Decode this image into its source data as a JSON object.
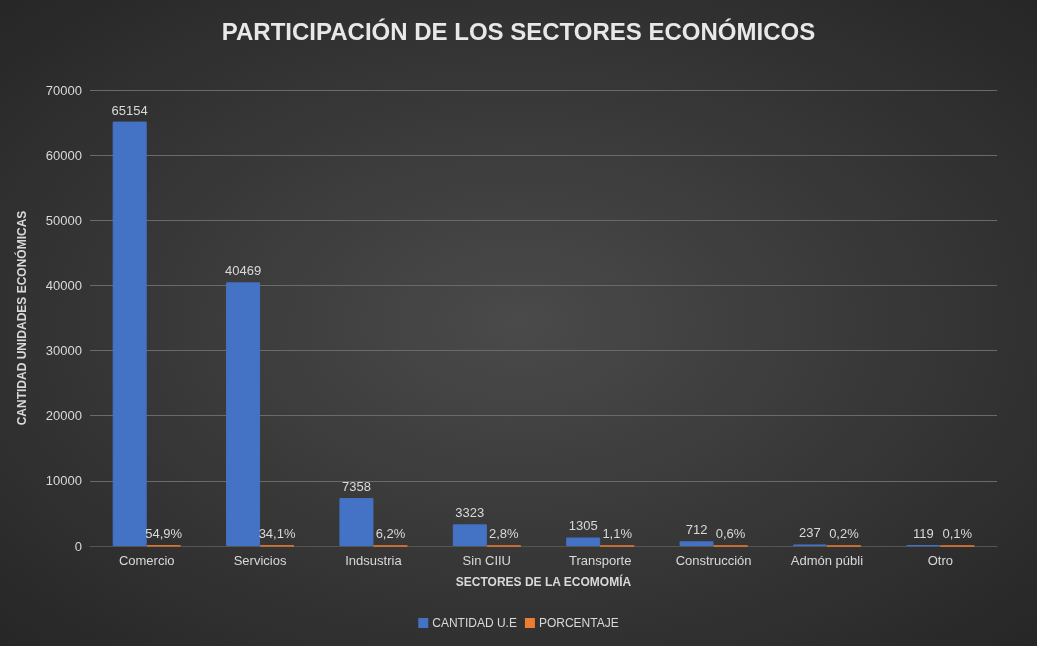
{
  "chart_data": {
    "type": "bar",
    "title": "PARTICIPACIÓN DE LOS SECTORES ECONÓMICOS",
    "xlabel": "SECTORES DE LA ECOMOMÍA",
    "ylabel": "CANTIDAD UNIDADES ECONÓMICAS",
    "categories": [
      "Comercio",
      "Servicios",
      "Indsustria",
      "Sin CIIU",
      "Transporte",
      "Construcción",
      "Admón públi",
      "Otro"
    ],
    "series": [
      {
        "name": "CANTIDAD U.E",
        "color": "#4472c4",
        "values": [
          65154,
          40469,
          7358,
          3323,
          1305,
          712,
          237,
          119
        ],
        "value_labels": [
          "65154",
          "40469",
          "7358",
          "3323",
          "1305",
          "712",
          "237",
          "119"
        ]
      },
      {
        "name": "PORCENTAJE",
        "color": "#ed7d31",
        "values": [
          54.9,
          34.1,
          6.2,
          2.8,
          1.1,
          0.6,
          0.2,
          0.1
        ],
        "value_labels": [
          "54,9%",
          "34,1%",
          "6,2%",
          "2,8%",
          "1,1%",
          "0,6%",
          "0,2%",
          "0,1%"
        ]
      }
    ],
    "ylim": [
      0,
      70000
    ],
    "yticks": [
      0,
      10000,
      20000,
      30000,
      40000,
      50000,
      60000,
      70000
    ],
    "grid": "y",
    "legend": "bottom"
  }
}
